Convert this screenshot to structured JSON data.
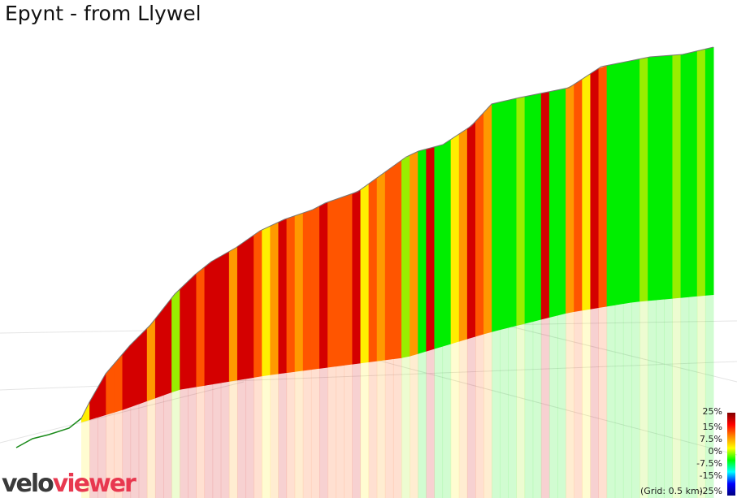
{
  "title": "Epynt - from Llywel",
  "logo": {
    "part1": "velo",
    "part2": "viewer"
  },
  "chart_data": {
    "type": "area",
    "title": "Epynt - from Llywel",
    "grid_note": "(Grid: 0.5 km)",
    "legend": {
      "type": "colorbar",
      "placement": "bottom-right",
      "ticks": [
        "25%",
        "15%",
        "7.5%",
        "0%",
        "-7.5%",
        "-15%",
        "-25%"
      ]
    },
    "gradient_color_keys": {
      "r": "#d40000",
      "o": "#ff5500",
      "a": "#ff9900",
      "y": "#ffee00",
      "l": "#99ee00",
      "g": "#00ee00"
    },
    "segment_gradient_colors": "yrroorrrarrlrrorуrrarroyaroaooroooryoaoolagrggyaroaggglggrggaoyroggggl gggl gglg"
  }
}
